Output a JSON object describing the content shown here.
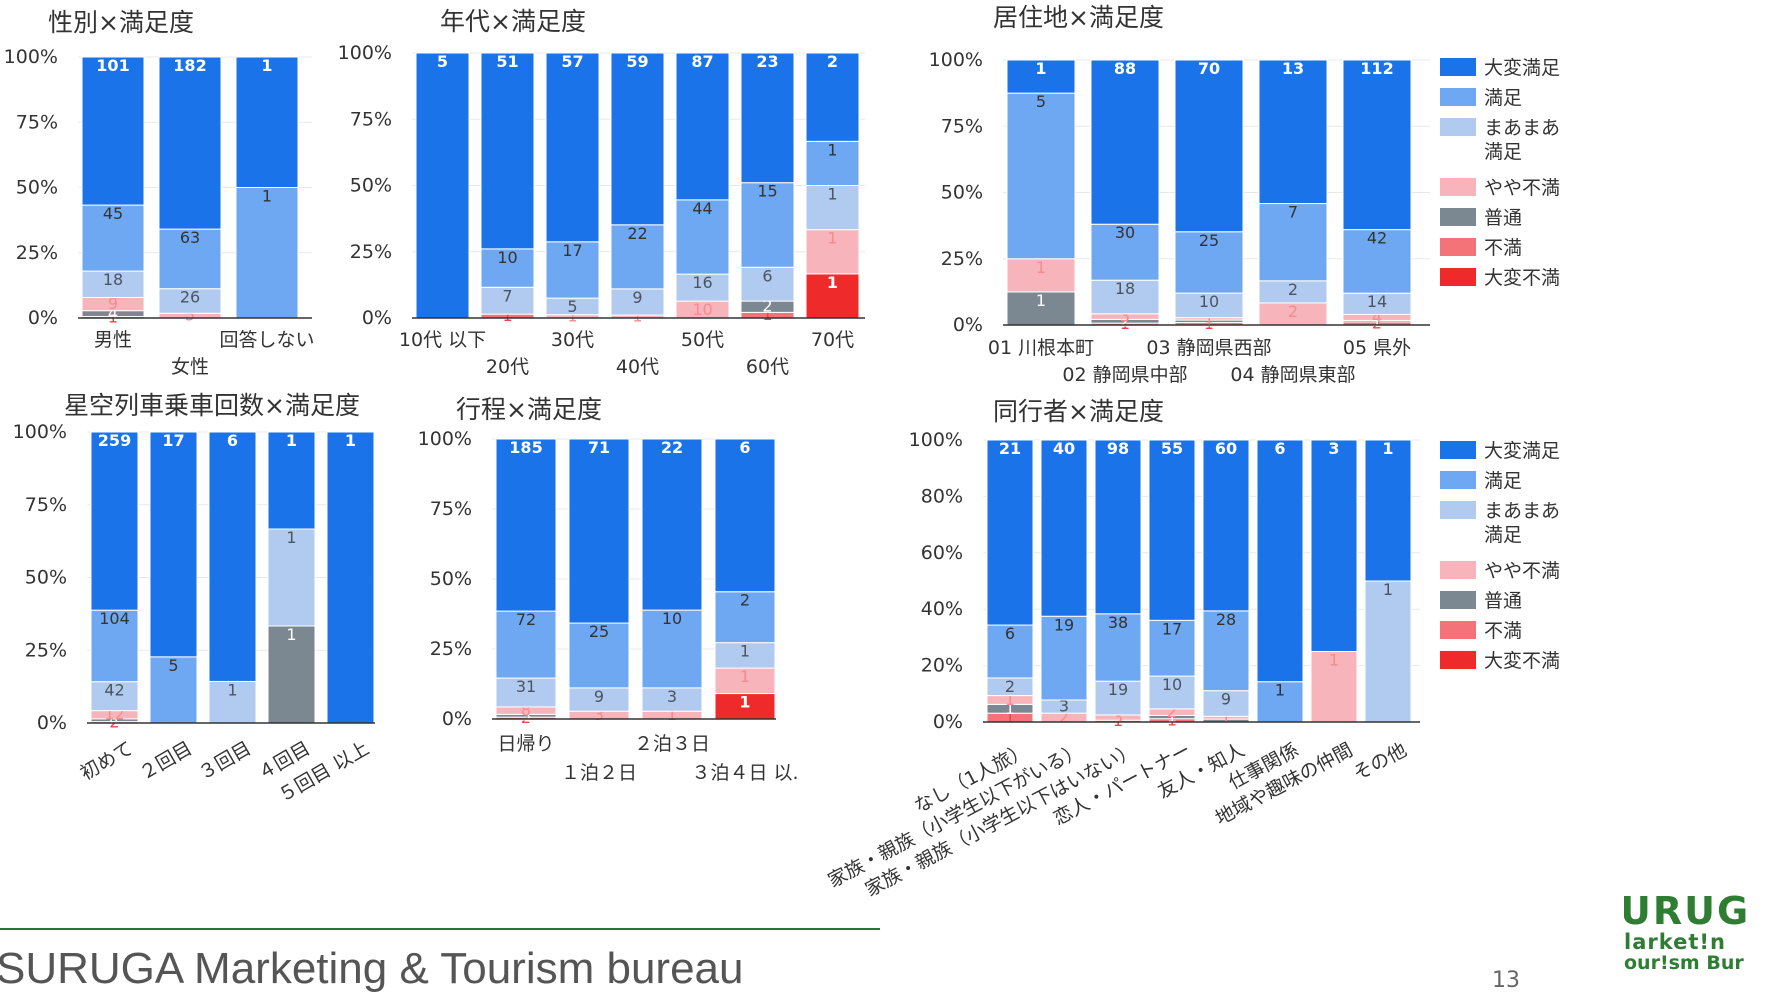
{
  "colors": {
    "大変満足": "#1a73e8",
    "満足": "#6fa8f2",
    "まあまあ満足": "#b1cbf0",
    "やや不満": "#f7b5bb",
    "普通": "#7b8791",
    "不満": "#f47379",
    "大変不満": "#ef2a2a"
  },
  "legend1": [
    {
      "key": "大変満足",
      "lines": [
        "大変満足"
      ]
    },
    {
      "key": "満足",
      "lines": [
        "満足"
      ]
    },
    {
      "key": "まあまあ満足",
      "lines": [
        "まあまあ",
        "満足"
      ]
    },
    {
      "key": "やや不満",
      "lines": [
        "やや不満"
      ]
    },
    {
      "key": "普通",
      "lines": [
        "普通"
      ]
    },
    {
      "key": "不満",
      "lines": [
        "不満"
      ]
    },
    {
      "key": "大変不満",
      "lines": [
        "大変不満"
      ]
    }
  ],
  "legend2": [
    {
      "key": "大変満足",
      "lines": [
        "大変満足"
      ]
    },
    {
      "key": "満足",
      "lines": [
        "満足"
      ]
    },
    {
      "key": "まあまあ満足",
      "lines": [
        "まあまあ",
        "満足"
      ]
    },
    {
      "key": "やや不満",
      "lines": [
        "やや不満"
      ]
    },
    {
      "key": "普通",
      "lines": [
        "普通"
      ]
    },
    {
      "key": "不満",
      "lines": [
        "不満"
      ]
    },
    {
      "key": "大変不満",
      "lines": [
        "大変不満"
      ]
    }
  ],
  "footer": {
    "text": "SURUGA Marketing & Tourism bureau",
    "page": "13",
    "logo": [
      "URUG",
      "larket!n",
      "our!sm Bur"
    ]
  },
  "chart_data": [
    {
      "type": "bar",
      "stacked": "percent",
      "title": "性別×満足度",
      "yticks": [
        "0%",
        "25%",
        "50%",
        "75%",
        "100%"
      ],
      "categories": [
        "男性",
        "女性",
        "回答しない"
      ],
      "stack_order": [
        "大変不満",
        "不満",
        "普通",
        "やや不満",
        "まあまあ満足",
        "満足",
        "大変満足"
      ],
      "series": [
        {
          "name": "大変満足",
          "values": [
            101,
            182,
            1
          ]
        },
        {
          "name": "満足",
          "values": [
            45,
            63,
            1
          ]
        },
        {
          "name": "まあまあ満足",
          "values": [
            18,
            26,
            0
          ]
        },
        {
          "name": "やや不満",
          "values": [
            9,
            5,
            0
          ]
        },
        {
          "name": "普通",
          "values": [
            4,
            0,
            0
          ]
        },
        {
          "name": "不満",
          "values": [
            1,
            0,
            0
          ]
        },
        {
          "name": "大変不満",
          "values": [
            0,
            0,
            0
          ]
        }
      ]
    },
    {
      "type": "bar",
      "stacked": "percent",
      "title": "年代×満足度",
      "yticks": [
        "0%",
        "25%",
        "50%",
        "75%",
        "100%"
      ],
      "categories": [
        "10代 以下",
        "20代",
        "30代",
        "40代",
        "50代",
        "60代",
        "70代"
      ],
      "stack_order": [
        "大変不満",
        "不満",
        "普通",
        "やや不満",
        "まあまあ満足",
        "満足",
        "大変満足"
      ],
      "series": [
        {
          "name": "大変満足",
          "values": [
            5,
            51,
            57,
            59,
            87,
            23,
            2
          ]
        },
        {
          "name": "満足",
          "values": [
            0,
            10,
            17,
            22,
            44,
            15,
            1
          ]
        },
        {
          "name": "まあまあ満足",
          "values": [
            0,
            7,
            5,
            9,
            16,
            6,
            1
          ]
        },
        {
          "name": "やや不満",
          "values": [
            0,
            0,
            1,
            1,
            10,
            0,
            1
          ]
        },
        {
          "name": "普通",
          "values": [
            0,
            0,
            0,
            0,
            0,
            2,
            0
          ]
        },
        {
          "name": "不満",
          "values": [
            0,
            1,
            0,
            0,
            0,
            1,
            0
          ]
        },
        {
          "name": "大変不満",
          "values": [
            0,
            0,
            0,
            0,
            0,
            0,
            1
          ]
        }
      ]
    },
    {
      "type": "bar",
      "stacked": "percent",
      "title": "居住地×満足度",
      "yticks": [
        "0%",
        "25%",
        "50%",
        "75%",
        "100%"
      ],
      "categories": [
        "01 川根本町",
        "02 静岡県中部",
        "03 静岡県西部",
        "04 静岡県東部",
        "05 県外"
      ],
      "stack_order": [
        "大変不満",
        "不満",
        "普通",
        "やや不満",
        "まあまあ満足",
        "満足",
        "大変満足"
      ],
      "series": [
        {
          "name": "大変満足",
          "values": [
            1,
            88,
            70,
            13,
            112
          ]
        },
        {
          "name": "満足",
          "values": [
            5,
            30,
            25,
            7,
            42
          ]
        },
        {
          "name": "まあまあ満足",
          "values": [
            0,
            18,
            10,
            2,
            14
          ]
        },
        {
          "name": "やや不満",
          "values": [
            1,
            3,
            1,
            2,
            4
          ]
        },
        {
          "name": "普通",
          "values": [
            1,
            2,
            1,
            0,
            1
          ]
        },
        {
          "name": "不満",
          "values": [
            0,
            1,
            1,
            0,
            2
          ]
        },
        {
          "name": "大変不満",
          "values": [
            0,
            0,
            0,
            0,
            0
          ]
        }
      ]
    },
    {
      "type": "bar",
      "stacked": "percent",
      "title": "星空列車乗車回数×満足度",
      "yticks": [
        "0%",
        "25%",
        "50%",
        "75%",
        "100%"
      ],
      "categories": [
        "初めて",
        "２回目",
        "３回目",
        "４回目",
        "５回目 以上"
      ],
      "stack_order": [
        "大変不満",
        "不満",
        "普通",
        "やや不満",
        "まあまあ満足",
        "満足",
        "大変満足"
      ],
      "series": [
        {
          "name": "大変満足",
          "values": [
            259,
            17,
            6,
            1,
            1
          ]
        },
        {
          "name": "満足",
          "values": [
            104,
            5,
            0,
            0,
            0
          ]
        },
        {
          "name": "まあまあ満足",
          "values": [
            42,
            0,
            1,
            1,
            0
          ]
        },
        {
          "name": "やや不満",
          "values": [
            12,
            0,
            0,
            0,
            0
          ]
        },
        {
          "name": "普通",
          "values": [
            4,
            0,
            0,
            1,
            0
          ]
        },
        {
          "name": "不満",
          "values": [
            2,
            0,
            0,
            0,
            0
          ]
        },
        {
          "name": "大変不満",
          "values": [
            0,
            0,
            0,
            0,
            0
          ]
        }
      ]
    },
    {
      "type": "bar",
      "stacked": "percent",
      "title": "行程×満足度",
      "yticks": [
        "0%",
        "25%",
        "50%",
        "75%",
        "100%"
      ],
      "categories": [
        "日帰り",
        "１泊２日",
        "２泊３日",
        "３泊４日 以."
      ],
      "stack_order": [
        "大変不満",
        "不満",
        "普通",
        "やや不満",
        "まあまあ満足",
        "満足",
        "大変満足"
      ],
      "series": [
        {
          "name": "大変満足",
          "values": [
            185,
            71,
            22,
            6
          ]
        },
        {
          "name": "満足",
          "values": [
            72,
            25,
            10,
            2
          ]
        },
        {
          "name": "まあまあ満足",
          "values": [
            31,
            9,
            3,
            1
          ]
        },
        {
          "name": "やや不満",
          "values": [
            8,
            3,
            1,
            1
          ]
        },
        {
          "name": "普通",
          "values": [
            3,
            0,
            0,
            0
          ]
        },
        {
          "name": "不満",
          "values": [
            2,
            0,
            0,
            0
          ]
        },
        {
          "name": "大変不満",
          "values": [
            0,
            0,
            0,
            1
          ]
        }
      ]
    },
    {
      "type": "bar",
      "stacked": "percent",
      "title": "同行者×満足度",
      "yticks": [
        "0%",
        "20%",
        "40%",
        "60%",
        "80%",
        "100%"
      ],
      "categories": [
        "なし（1人旅）",
        "家族・親族（小学生以下がいる）",
        "家族・親族（小学生以下はいない）",
        "恋人・パートナー",
        "友人・知人",
        "仕事関係",
        "地域や趣味の仲間",
        "その他"
      ],
      "stack_order": [
        "大変不満",
        "不満",
        "普通",
        "やや不満",
        "まあまあ満足",
        "満足",
        "大変満足"
      ],
      "series": [
        {
          "name": "大変満足",
          "values": [
            21,
            40,
            98,
            55,
            60,
            6,
            3,
            1
          ]
        },
        {
          "name": "満足",
          "values": [
            6,
            19,
            38,
            17,
            28,
            1,
            0,
            0
          ]
        },
        {
          "name": "まあまあ満足",
          "values": [
            2,
            3,
            19,
            10,
            9,
            0,
            0,
            1
          ]
        },
        {
          "name": "やや不満",
          "values": [
            1,
            2,
            3,
            2,
            1,
            0,
            1,
            0
          ]
        },
        {
          "name": "普通",
          "values": [
            1,
            0,
            0,
            1,
            1,
            0,
            0,
            0
          ]
        },
        {
          "name": "不満",
          "values": [
            1,
            0,
            1,
            1,
            0,
            0,
            0,
            0
          ]
        },
        {
          "name": "大変不満",
          "values": [
            0,
            0,
            0,
            0,
            0,
            0,
            0,
            0
          ]
        }
      ]
    }
  ]
}
